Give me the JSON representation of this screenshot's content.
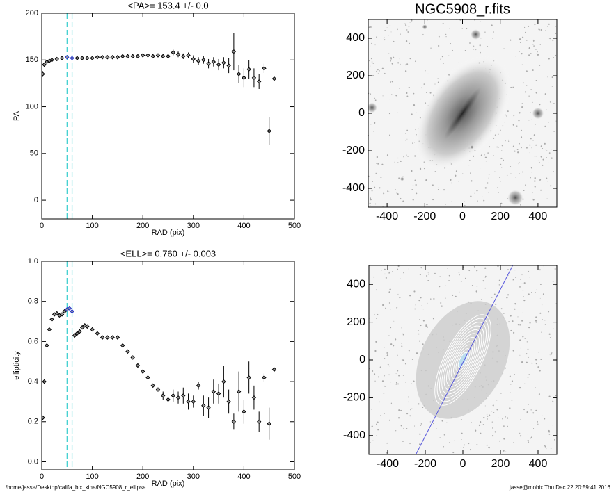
{
  "chart_data": [
    {
      "type": "scatter",
      "title": "<PA>= 153.4 +/-   0.0",
      "xlabel": "RAD (pix)",
      "ylabel": "PA",
      "xlim": [
        0,
        500
      ],
      "ylim": [
        -20,
        200
      ],
      "xticks": [
        0,
        100,
        200,
        300,
        400,
        500
      ],
      "yticks": [
        0,
        50,
        100,
        150,
        200
      ],
      "color": "#000000",
      "highlight_color": "#2233cc",
      "vlines": [
        50,
        60
      ],
      "vline_color": "#33cccc",
      "x": [
        2,
        5,
        10,
        15,
        20,
        30,
        40,
        50,
        60,
        70,
        80,
        90,
        100,
        110,
        120,
        130,
        140,
        150,
        160,
        170,
        180,
        190,
        200,
        210,
        220,
        230,
        240,
        250,
        260,
        270,
        280,
        290,
        300,
        310,
        320,
        330,
        340,
        350,
        360,
        370,
        380,
        390,
        400,
        410,
        420,
        430,
        440,
        450,
        460
      ],
      "values": [
        135,
        145,
        148,
        149,
        150,
        151,
        152,
        153,
        152,
        152,
        152,
        152,
        152,
        153,
        153,
        153,
        153,
        153,
        154,
        154,
        154,
        154,
        155,
        155,
        154,
        155,
        154,
        154,
        158,
        156,
        154,
        155,
        151,
        149,
        150,
        146,
        148,
        145,
        147,
        144,
        159,
        135,
        131,
        140,
        131,
        127,
        141,
        74,
        130
      ],
      "errors": [
        3,
        2,
        1,
        1,
        1,
        1,
        1,
        1,
        1,
        1,
        1,
        1,
        1,
        1,
        1,
        1,
        1,
        1,
        1,
        1,
        1,
        1,
        1,
        2,
        2,
        2,
        2,
        2,
        3,
        3,
        3,
        3,
        4,
        4,
        4,
        5,
        5,
        6,
        6,
        8,
        20,
        10,
        10,
        10,
        10,
        8,
        5,
        15,
        2
      ]
    },
    {
      "type": "image",
      "title": "NGC5908_r.fits",
      "variant": "galaxy",
      "xlim": [
        -500,
        500
      ],
      "ylim": [
        -500,
        500
      ],
      "xticks": [
        -400,
        -200,
        0,
        200,
        400
      ],
      "yticks": [
        -400,
        -200,
        0,
        200,
        400
      ]
    },
    {
      "type": "scatter",
      "title": "<ELL>= 0.760 +/-  0.003",
      "xlabel": "RAD (pix)",
      "ylabel": "ellipticity",
      "xlim": [
        0,
        500
      ],
      "ylim": [
        -0.04,
        1.0
      ],
      "xticks": [
        0,
        100,
        200,
        300,
        400,
        500
      ],
      "yticks": [
        {
          "value": 0,
          "label": "0.0"
        },
        0.2,
        0.4,
        0.6,
        0.8,
        {
          "value": 1,
          "label": "1.0"
        }
      ],
      "color": "#000000",
      "highlight_color": "#2233cc",
      "vlines": [
        50,
        60
      ],
      "vline_color": "#33cccc",
      "x": [
        2,
        5,
        10,
        15,
        20,
        25,
        30,
        35,
        40,
        45,
        50,
        55,
        60,
        65,
        70,
        75,
        80,
        85,
        90,
        100,
        110,
        120,
        130,
        140,
        150,
        160,
        170,
        180,
        190,
        200,
        210,
        220,
        230,
        240,
        250,
        260,
        270,
        280,
        290,
        300,
        310,
        320,
        330,
        340,
        350,
        360,
        370,
        380,
        390,
        400,
        410,
        420,
        430,
        440,
        450,
        460
      ],
      "values": [
        0.22,
        0.4,
        0.58,
        0.66,
        0.71,
        0.735,
        0.74,
        0.73,
        0.735,
        0.75,
        0.76,
        0.765,
        0.75,
        0.63,
        0.64,
        0.65,
        0.67,
        0.68,
        0.675,
        0.66,
        0.64,
        0.62,
        0.62,
        0.62,
        0.62,
        0.58,
        0.55,
        0.52,
        0.48,
        0.45,
        0.42,
        0.38,
        0.36,
        0.33,
        0.31,
        0.33,
        0.32,
        0.33,
        0.3,
        0.3,
        0.38,
        0.28,
        0.27,
        0.35,
        0.34,
        0.4,
        0.3,
        0.2,
        0.35,
        0.25,
        0.42,
        0.32,
        0.2,
        0.42,
        0.19,
        0.46
      ],
      "errors": [
        0.01,
        0.01,
        0.005,
        0.005,
        0.005,
        0.005,
        0.005,
        0.005,
        0.005,
        0.005,
        0.005,
        0.005,
        0.01,
        0.01,
        0.01,
        0.01,
        0.01,
        0.01,
        0.01,
        0.01,
        0.01,
        0.01,
        0.01,
        0.01,
        0.01,
        0.01,
        0.01,
        0.01,
        0.01,
        0.01,
        0.01,
        0.01,
        0.01,
        0.02,
        0.02,
        0.03,
        0.03,
        0.04,
        0.04,
        0.03,
        0.02,
        0.05,
        0.05,
        0.06,
        0.05,
        0.08,
        0.06,
        0.04,
        0.1,
        0.06,
        0.08,
        0.06,
        0.05,
        0.02,
        0.08,
        0.01
      ]
    },
    {
      "type": "image",
      "variant": "contours",
      "line_x": [
        -250,
        265
      ],
      "line_y": [
        -500,
        500
      ],
      "line_color": "#5555dd",
      "xlim": [
        -500,
        500
      ],
      "ylim": [
        -500,
        500
      ],
      "xticks": [
        -400,
        -200,
        0,
        200,
        400
      ],
      "yticks": [
        -400,
        -200,
        0,
        200,
        400
      ]
    }
  ],
  "footer": {
    "left": "/home/jasse/Desktop/califa_blx_kine/NGC5908_r_ellipse",
    "right": "jasse@mobix  Thu Dec 22 20:59:41 2016"
  }
}
